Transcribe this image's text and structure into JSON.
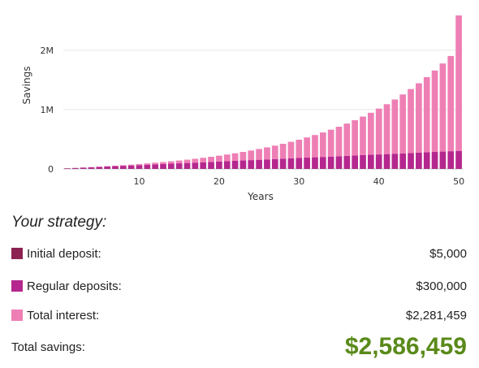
{
  "chart_data": {
    "type": "bar",
    "stacked": true,
    "x": [
      1,
      2,
      3,
      4,
      5,
      6,
      7,
      8,
      9,
      10,
      11,
      12,
      13,
      14,
      15,
      16,
      17,
      18,
      19,
      20,
      21,
      22,
      23,
      24,
      25,
      26,
      27,
      28,
      29,
      30,
      31,
      32,
      33,
      34,
      35,
      36,
      37,
      38,
      39,
      40,
      41,
      42,
      43,
      44,
      45,
      46,
      47,
      48,
      49,
      50
    ],
    "series": [
      {
        "name": "Initial deposit",
        "color": "#8b2252",
        "values": [
          5000,
          5000,
          5000,
          5000,
          5000,
          5000,
          5000,
          5000,
          5000,
          5000,
          5000,
          5000,
          5000,
          5000,
          5000,
          5000,
          5000,
          5000,
          5000,
          5000,
          5000,
          5000,
          5000,
          5000,
          5000,
          5000,
          5000,
          5000,
          5000,
          5000,
          5000,
          5000,
          5000,
          5000,
          5000,
          5000,
          5000,
          5000,
          5000,
          5000,
          5000,
          5000,
          5000,
          5000,
          5000,
          5000,
          5000,
          5000,
          5000,
          5000
        ]
      },
      {
        "name": "Regular deposits",
        "color": "#b5278e",
        "values": [
          6000,
          12000,
          18000,
          24000,
          30000,
          36000,
          42000,
          48000,
          54000,
          60000,
          66000,
          72000,
          78000,
          84000,
          90000,
          96000,
          102000,
          108000,
          114000,
          120000,
          126000,
          132000,
          138000,
          144000,
          150000,
          156000,
          162000,
          168000,
          174000,
          180000,
          186000,
          192000,
          198000,
          204000,
          210000,
          216000,
          222000,
          228000,
          234000,
          240000,
          246000,
          252000,
          258000,
          264000,
          270000,
          276000,
          282000,
          288000,
          294000,
          300000
        ]
      },
      {
        "name": "Total interest",
        "color": "#ee7fb5",
        "values": [
          200,
          700,
          1500,
          2700,
          4200,
          6100,
          8400,
          11200,
          14500,
          18300,
          22700,
          27800,
          33600,
          40100,
          47500,
          55700,
          64800,
          75000,
          86300,
          98700,
          112400,
          127400,
          143800,
          161800,
          181400,
          202700,
          225900,
          251100,
          278400,
          308000,
          340100,
          374800,
          412300,
          452800,
          496500,
          543700,
          594500,
          649300,
          708300,
          771800,
          840100,
          913600,
          992600,
          1077400,
          1168500,
          1266300,
          1371300,
          1483800,
          1604400,
          2281459
        ]
      }
    ],
    "ylabel": "Savings",
    "xlabel": "Years",
    "ylim": [
      0,
      2600000
    ],
    "y_ticks": [
      0,
      1000000,
      2000000
    ],
    "y_tick_labels": [
      "0",
      "1M",
      "2M"
    ],
    "x_ticks": [
      10,
      20,
      30,
      40,
      50
    ],
    "x_tick_labels": [
      "10",
      "20",
      "30",
      "40",
      "50"
    ],
    "grid": true
  },
  "strategy": {
    "title": "Your strategy:",
    "initial_label": "Initial deposit:",
    "initial_value": "$5,000",
    "initial_color": "#8b2252",
    "regular_label": "Regular deposits:",
    "regular_value": "$300,000",
    "regular_color": "#b5278e",
    "interest_label": "Total interest:",
    "interest_value": "$2,281,459",
    "interest_color": "#ee7fb5",
    "total_label": "Total savings:",
    "total_value": "$2,586,459",
    "total_color": "#5a8a1a"
  }
}
